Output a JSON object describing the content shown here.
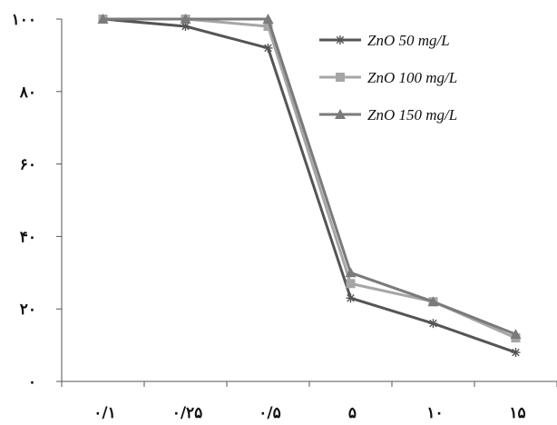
{
  "chart_data": {
    "type": "line",
    "categories": [
      "۰/۱",
      "۰/۲۵",
      "۰/۵",
      "۵",
      "۱۰",
      "۱۵"
    ],
    "ylim": [
      0,
      100
    ],
    "yticks": [
      {
        "value": 0,
        "label": "۰"
      },
      {
        "value": 20,
        "label": "۲۰"
      },
      {
        "value": 40,
        "label": "۴۰"
      },
      {
        "value": 60,
        "label": "۶۰"
      },
      {
        "value": 80,
        "label": "۸۰"
      },
      {
        "value": 100,
        "label": "۱۰۰"
      }
    ],
    "grid": false,
    "legend_position": "top-right",
    "series": [
      {
        "name": "ZnO 50 mg/L",
        "values": [
          100,
          98,
          92,
          23,
          16,
          8
        ],
        "color": "#555555",
        "marker": "asterisk"
      },
      {
        "name": "ZnO 100 mg/L",
        "values": [
          100,
          100,
          98,
          27,
          22,
          12
        ],
        "color": "#a6a6a6",
        "marker": "square"
      },
      {
        "name": "ZnO 150 mg/L",
        "values": [
          100,
          100,
          100,
          30,
          22,
          13
        ],
        "color": "#7a7a7a",
        "marker": "triangle"
      }
    ]
  }
}
